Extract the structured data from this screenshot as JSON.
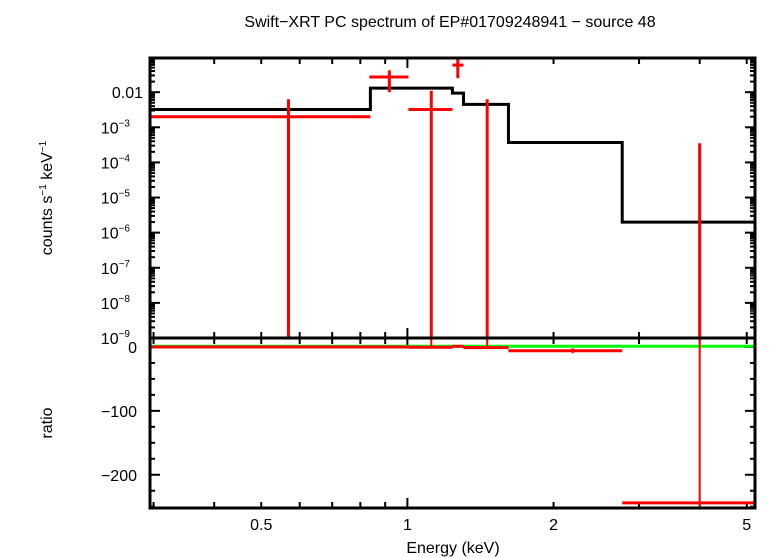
{
  "chart_data": [
    {
      "type": "scatter",
      "title": "Swift−XRT PC spectrum of EP#01709248941 − source 48",
      "ylabel_html": [
        "counts s",
        "−1",
        " keV",
        "−1"
      ],
      "xlabel": "",
      "xscale": "log",
      "yscale": "log",
      "xlim": [
        0.295,
        5.2
      ],
      "ylim": [
        1e-09,
        0.094
      ],
      "ytick_labels": [
        {
          "v": 0.01,
          "base": "0.01",
          "exp": ""
        },
        {
          "v": 0.001,
          "base": "10",
          "exp": "−3"
        },
        {
          "v": 0.0001,
          "base": "10",
          "exp": "−4"
        },
        {
          "v": 1e-05,
          "base": "10",
          "exp": "−5"
        },
        {
          "v": 1e-06,
          "base": "10",
          "exp": "−6"
        },
        {
          "v": 1e-07,
          "base": "10",
          "exp": "−7"
        },
        {
          "v": 1e-08,
          "base": "10",
          "exp": "−8"
        },
        {
          "v": 1e-09,
          "base": "10",
          "exp": "−9"
        }
      ],
      "model_steps": [
        {
          "x0": 0.295,
          "x1": 0.839,
          "y": 0.0032
        },
        {
          "x0": 0.839,
          "x1": 1.238,
          "y": 0.013
        },
        {
          "x0": 1.238,
          "x1": 1.305,
          "y": 0.0094
        },
        {
          "x0": 1.305,
          "x1": 1.615,
          "y": 0.0045
        },
        {
          "x0": 1.615,
          "x1": 2.77,
          "y": 0.00037
        },
        {
          "x0": 2.77,
          "x1": 5.2,
          "y": 2e-06
        }
      ],
      "data_points": [
        {
          "x": 0.569,
          "x0": 0.295,
          "x1": 0.839,
          "y": 0.002,
          "ylo": 1e-10,
          "yhi": 0.0063
        },
        {
          "x": 0.918,
          "x0": 0.835,
          "x1": 1.005,
          "y": 0.027,
          "ylo": 0.01,
          "yhi": 0.042
        },
        {
          "x": 1.12,
          "x0": 1.005,
          "x1": 1.238,
          "y": 0.0032,
          "ylo": 1e-10,
          "yhi": 0.011
        },
        {
          "x": 1.27,
          "x0": 1.238,
          "x1": 1.305,
          "y": 0.059,
          "ylo": 0.025,
          "yhi": 0.1
        },
        {
          "x": 1.46,
          "x0": 1.305,
          "x1": 1.615,
          "y": 1e-10,
          "ylo": 1e-10,
          "yhi": 0.0063
        },
        {
          "x": 2.19,
          "x0": 1.615,
          "x1": 2.77,
          "y": 1e-10,
          "ylo": 1e-10,
          "yhi": 1e-10
        },
        {
          "x": 4.0,
          "x0": 2.77,
          "x1": 5.2,
          "y": 1e-10,
          "ylo": 1e-10,
          "yhi": 0.00035
        }
      ],
      "colors": {
        "data": "#ff0000",
        "model": "#000000",
        "reference": "#00ff00"
      }
    },
    {
      "type": "scatter",
      "ylabel": "ratio",
      "xlabel": "Energy (keV)",
      "xscale": "log",
      "xlim": [
        0.295,
        5.2
      ],
      "ylim": [
        -252,
        14
      ],
      "xtick_labels": [
        {
          "v": 0.5,
          "t": "0.5"
        },
        {
          "v": 1,
          "t": "1"
        },
        {
          "v": 2,
          "t": "2"
        },
        {
          "v": 5,
          "t": "5"
        }
      ],
      "ytick_labels": [
        {
          "v": 0,
          "t": "0"
        },
        {
          "v": -100,
          "t": "−100"
        },
        {
          "v": -200,
          "t": "−200"
        }
      ],
      "reference_line": 1,
      "data_points": [
        {
          "x": 0.569,
          "x0": 0.295,
          "x1": 0.839,
          "y": 0,
          "ylo": -1,
          "yhi": 1
        },
        {
          "x": 0.918,
          "x0": 0.835,
          "x1": 1.005,
          "y": 0,
          "ylo": -0.5,
          "yhi": 0.5
        },
        {
          "x": 1.12,
          "x0": 1.005,
          "x1": 1.238,
          "y": -0.5,
          "ylo": -1,
          "yhi": 14
        },
        {
          "x": 1.27,
          "x0": 1.238,
          "x1": 1.305,
          "y": 1,
          "ylo": 0,
          "yhi": 2
        },
        {
          "x": 1.46,
          "x0": 1.305,
          "x1": 1.615,
          "y": -1,
          "ylo": -3,
          "yhi": 14
        },
        {
          "x": 2.19,
          "x0": 1.615,
          "x1": 2.77,
          "y": -6,
          "ylo": -10,
          "yhi": -2
        },
        {
          "x": 4.0,
          "x0": 2.77,
          "x1": 5.2,
          "y": -244,
          "ylo": -252,
          "yhi": 14
        }
      ]
    }
  ]
}
